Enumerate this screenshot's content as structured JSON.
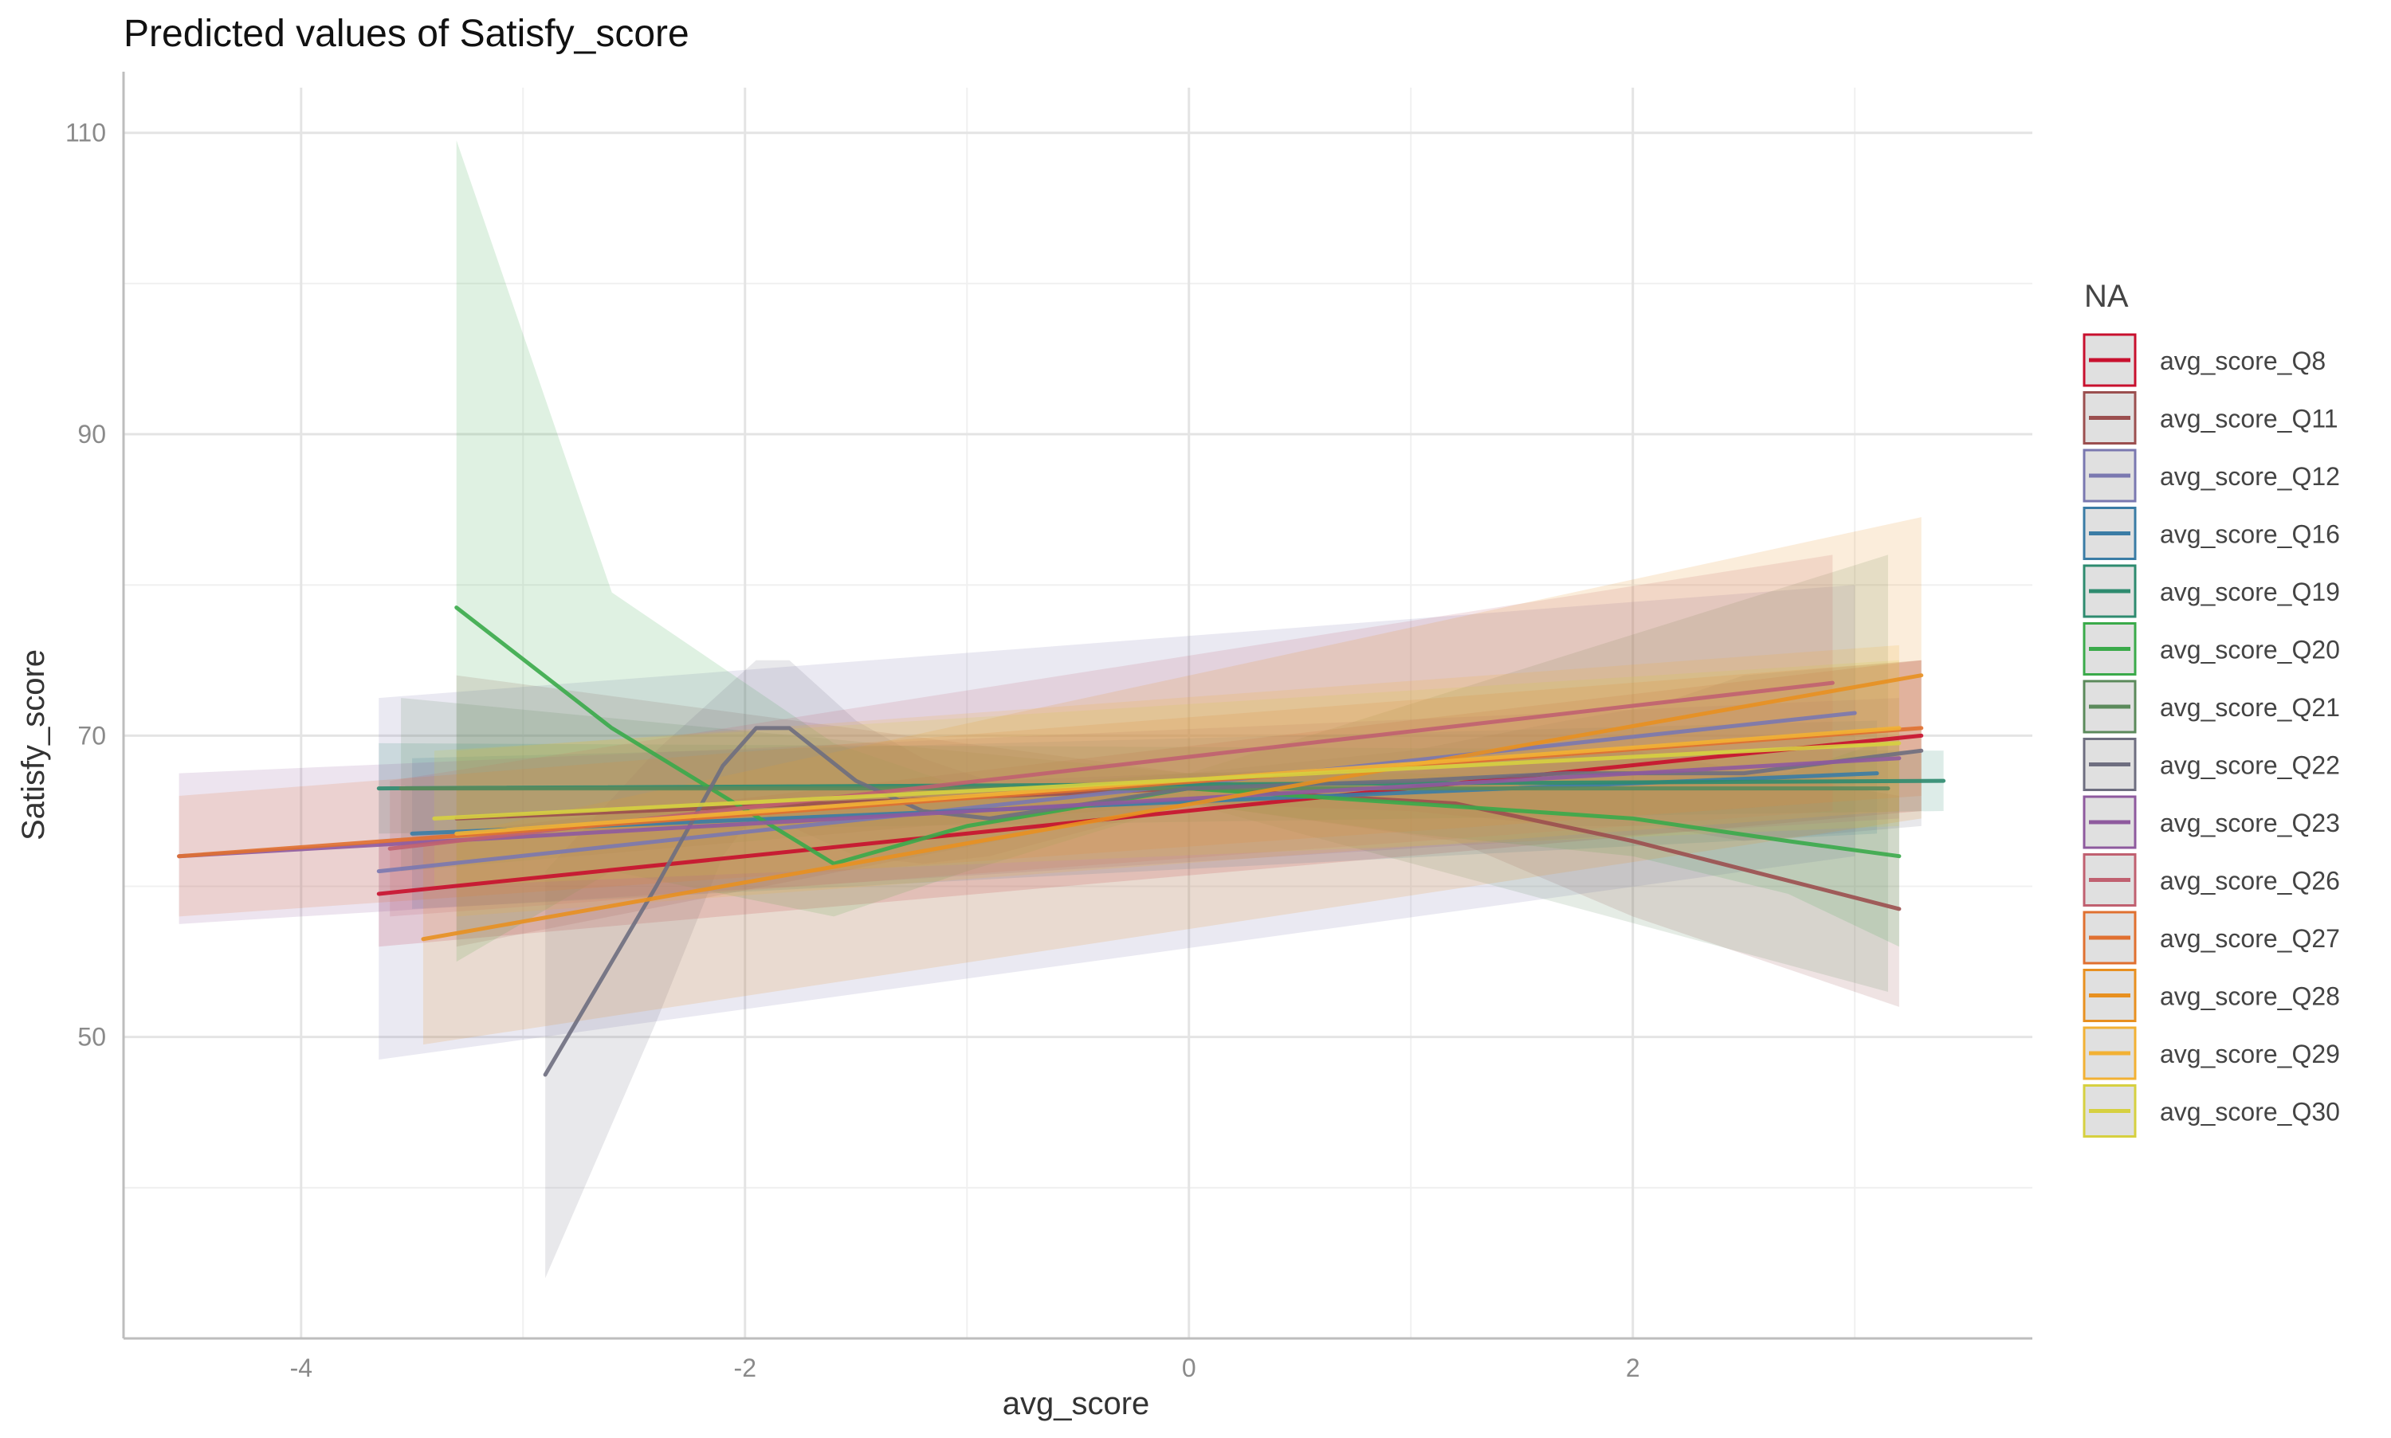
{
  "chart_data": {
    "type": "line",
    "title": "Predicted values of Satisfy_score",
    "xlabel": "avg_score",
    "ylabel": "Satisfy_score",
    "xlim": [
      -4.8,
      3.8
    ],
    "ylim": [
      30,
      113
    ],
    "x_ticks": [
      -4,
      -2,
      0,
      2
    ],
    "y_ticks": [
      50,
      70,
      90,
      110
    ],
    "grid": true,
    "legend": {
      "title": "NA",
      "position": "right"
    },
    "series": [
      {
        "name": "avg_score_Q8",
        "color": "#C8102E",
        "x": [
          -3.65,
          3.3
        ],
        "y": [
          59.5,
          70
        ],
        "ci_lower": [
          56,
          65
        ],
        "ci_upper": [
          63,
          75
        ]
      },
      {
        "name": "avg_score_Q11",
        "color": "#9B4F4F",
        "x": [
          -3.3,
          0,
          1.2,
          2,
          3.2
        ],
        "y": [
          64.5,
          66.5,
          65.5,
          63,
          58.5
        ],
        "ci_lower": [
          56,
          65.5,
          63,
          58,
          52
        ],
        "ci_upper": [
          74,
          67.5,
          68,
          69,
          66
        ]
      },
      {
        "name": "avg_score_Q12",
        "color": "#7A78B0",
        "x": [
          -3.65,
          3
        ],
        "y": [
          61,
          71.5
        ],
        "ci_lower": [
          48.5,
          62
        ],
        "ci_upper": [
          72.5,
          80
        ]
      },
      {
        "name": "avg_score_Q16",
        "color": "#3A7CA5",
        "x": [
          -3.5,
          3.1
        ],
        "y": [
          63.5,
          67.5
        ],
        "ci_lower": [
          58.5,
          63.5
        ],
        "ci_upper": [
          68.5,
          71
        ]
      },
      {
        "name": "avg_score_Q19",
        "color": "#2E8B6F",
        "x": [
          -3.65,
          3.4
        ],
        "y": [
          66.5,
          67
        ],
        "ci_lower": [
          63.5,
          65
        ],
        "ci_upper": [
          69.5,
          69
        ]
      },
      {
        "name": "avg_score_Q20",
        "color": "#3AAA4A",
        "x": [
          -3.3,
          -2.6,
          -1.6,
          -1,
          0,
          1,
          2,
          2.7,
          3.2
        ],
        "y": [
          78.5,
          70.5,
          61.5,
          64,
          66.5,
          65.5,
          64.5,
          63,
          62
        ],
        "ci_lower": [
          55,
          61,
          58,
          61,
          65.5,
          63.5,
          62,
          59.5,
          56
        ],
        "ci_upper": [
          109.5,
          79.5,
          69.5,
          66.5,
          67.5,
          67.5,
          67,
          67.5,
          70
        ]
      },
      {
        "name": "avg_score_Q21",
        "color": "#5B8A5B",
        "x": [
          -3.55,
          0,
          3.15
        ],
        "y": [
          66.5,
          66.5,
          66.5
        ],
        "ci_lower": [
          61,
          65.5,
          53
        ],
        "ci_upper": [
          72.5,
          67.5,
          82
        ]
      },
      {
        "name": "avg_score_Q22",
        "color": "#6E6E80",
        "x": [
          -2.9,
          -2.4,
          -2.1,
          -1.95,
          -1.8,
          -1.5,
          -1.2,
          -0.9,
          0,
          1,
          1.7,
          2.1,
          2.5,
          3.3
        ],
        "y": [
          47.5,
          60,
          68,
          70.5,
          70.5,
          67,
          65,
          64.5,
          66.5,
          67,
          67.5,
          67.5,
          67.5,
          69
        ],
        "ci_lower": [
          34,
          51,
          62,
          65,
          64,
          62,
          61.5,
          62,
          65.5,
          65,
          64,
          64,
          63,
          64
        ],
        "ci_upper": [
          61,
          69,
          73,
          75,
          75,
          71,
          68.5,
          67,
          67.5,
          69,
          71,
          72,
          74,
          75
        ]
      },
      {
        "name": "avg_score_Q23",
        "color": "#8E5A9E",
        "x": [
          -4.55,
          3.2
        ],
        "y": [
          62,
          68.5
        ],
        "ci_lower": [
          57.5,
          64.5
        ],
        "ci_upper": [
          67.5,
          72.5
        ]
      },
      {
        "name": "avg_score_Q26",
        "color": "#C06070",
        "x": [
          -3.6,
          2.9
        ],
        "y": [
          62.5,
          73.5
        ],
        "ci_lower": [
          58,
          65
        ],
        "ci_upper": [
          67,
          82
        ]
      },
      {
        "name": "avg_score_Q27",
        "color": "#E07030",
        "x": [
          -4.55,
          3.3
        ],
        "y": [
          62,
          70.5
        ],
        "ci_lower": [
          58,
          66
        ],
        "ci_upper": [
          66,
          75
        ]
      },
      {
        "name": "avg_score_Q28",
        "color": "#E89020",
        "x": [
          -3.45,
          3.3
        ],
        "y": [
          56.5,
          74
        ],
        "ci_lower": [
          49.5,
          64.5
        ],
        "ci_upper": [
          63,
          84.5
        ]
      },
      {
        "name": "avg_score_Q29",
        "color": "#F2B134",
        "x": [
          -3.3,
          3.2
        ],
        "y": [
          63.5,
          70.5
        ],
        "ci_lower": [
          58,
          65
        ],
        "ci_upper": [
          69,
          76
        ]
      },
      {
        "name": "avg_score_Q30",
        "color": "#D6D040",
        "x": [
          -3.4,
          3.2
        ],
        "y": [
          64.5,
          69.5
        ],
        "ci_lower": [
          60,
          64
        ],
        "ci_upper": [
          69,
          75
        ]
      }
    ]
  }
}
